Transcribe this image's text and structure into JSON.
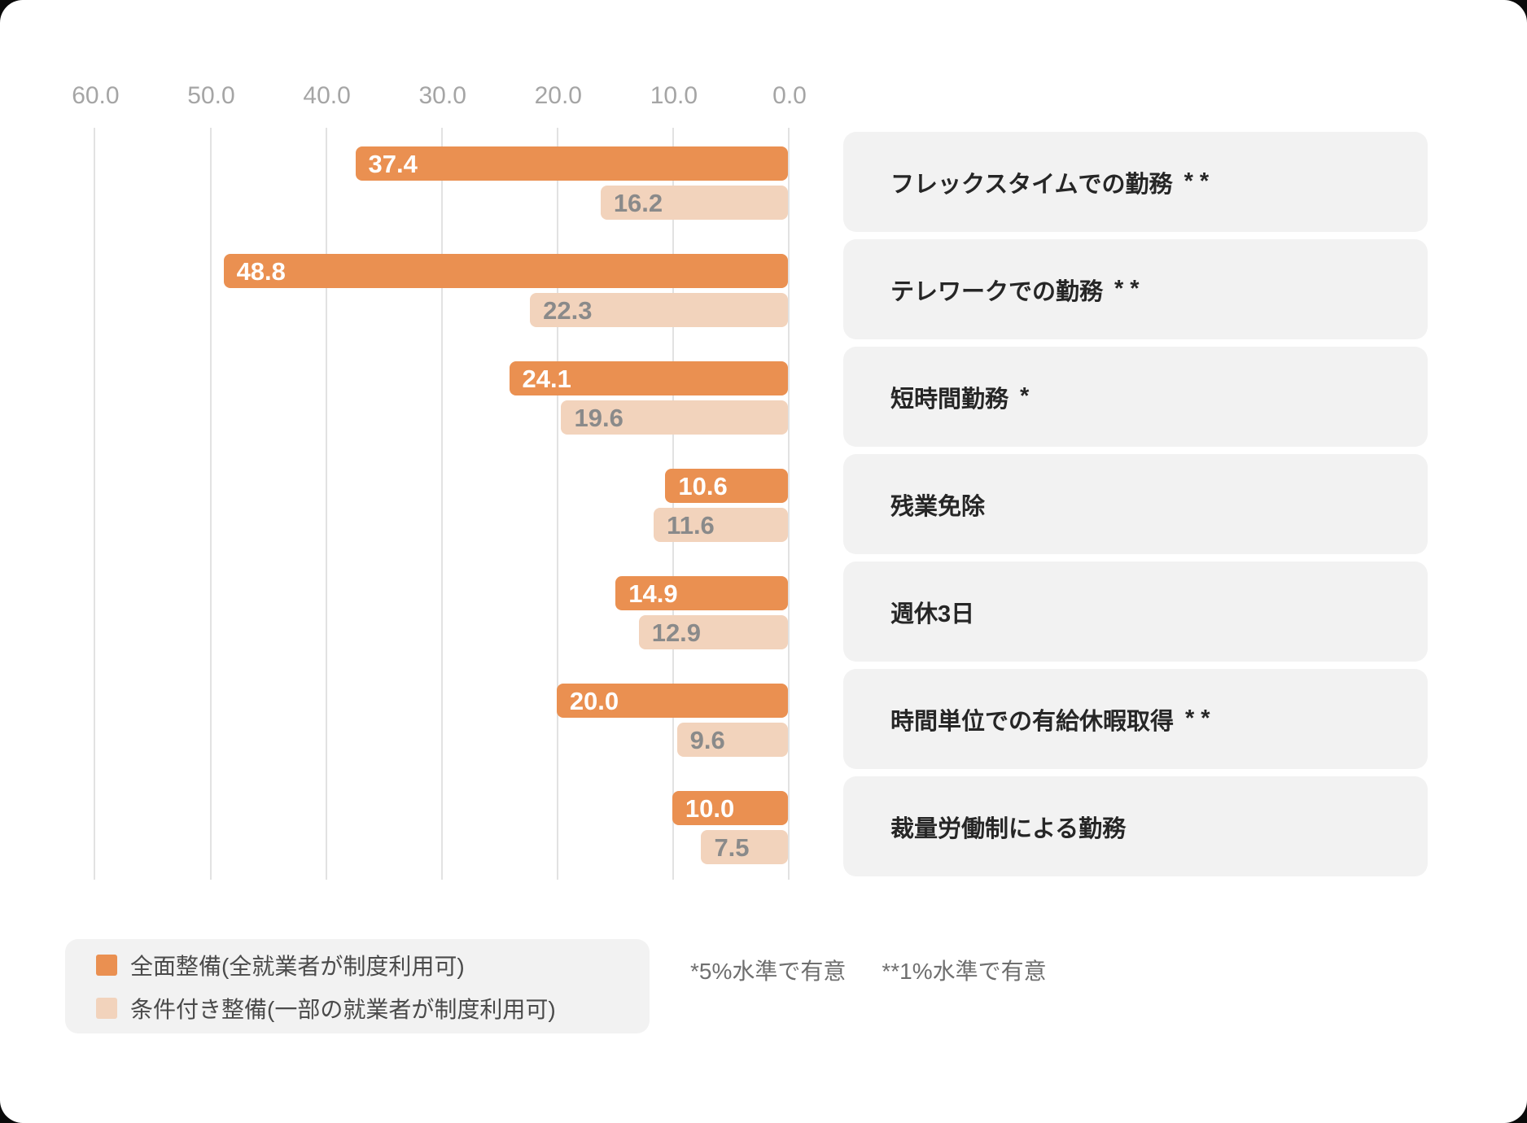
{
  "chart_data": {
    "type": "bar",
    "orientation": "horizontal",
    "title": "",
    "value_axis": {
      "position": "top",
      "direction": "right-to-left",
      "ticks": [
        60,
        50,
        40,
        30,
        20,
        10,
        0
      ],
      "tick_labels": [
        "60.0",
        "50.0",
        "40.0",
        "30.0",
        "20.0",
        "10.0",
        "0.0"
      ],
      "range": [
        0,
        61.3
      ],
      "grid": true
    },
    "categories": [
      {
        "name": "フレックスタイムでの勤務",
        "sig": "**"
      },
      {
        "name": "テレワークでの勤務",
        "sig": "**"
      },
      {
        "name": "短時間勤務",
        "sig": "*"
      },
      {
        "name": "残業免除",
        "sig": ""
      },
      {
        "name": "週休3日",
        "sig": ""
      },
      {
        "name": "時間単位での有給休暇取得",
        "sig": "**"
      },
      {
        "name": "裁量労働制による勤務",
        "sig": ""
      }
    ],
    "series": [
      {
        "name": "全面整備(全就業者が制度利用可)",
        "color": "#EA9051",
        "text_color": "#FFFFFF",
        "values": [
          37.4,
          48.8,
          24.1,
          10.6,
          14.9,
          20.0,
          10.0
        ],
        "value_labels": [
          "37.4",
          "48.8",
          "24.1",
          "10.6",
          "14.9",
          "20.0",
          "10.0"
        ]
      },
      {
        "name": "条件付き整備(一部の就業者が制度利用可)",
        "color": "#F2D3BC",
        "text_color": "#8A8A8A",
        "values": [
          16.2,
          22.3,
          19.6,
          11.6,
          12.9,
          9.6,
          7.5
        ],
        "value_labels": [
          "16.2",
          "22.3",
          "19.6",
          "11.6",
          "12.9",
          "9.6",
          "7.5"
        ]
      }
    ],
    "legend_position": "bottom-left"
  },
  "legend": {
    "items": [
      {
        "label": "全面整備(全就業者が制度利用可)",
        "color": "#EA9051"
      },
      {
        "label": "条件付き整備(一部の就業者が制度利用可)",
        "color": "#F2D3BC"
      }
    ]
  },
  "footnote": {
    "part1": "*5%水準で有意",
    "part2": "**1%水準で有意"
  },
  "colors": {
    "background": "#FFFFFF",
    "bar_full": "#EA9051",
    "bar_conditional": "#F2D3BC",
    "category_box": "#F2F2F2",
    "legend_box": "#F2F2F2",
    "gridline": "#E2E2E2",
    "axis_text": "#A5A5A5",
    "category_text": "#262626",
    "conditional_value_text": "#8A8A8A",
    "footnote_text": "#6F6F6F"
  }
}
